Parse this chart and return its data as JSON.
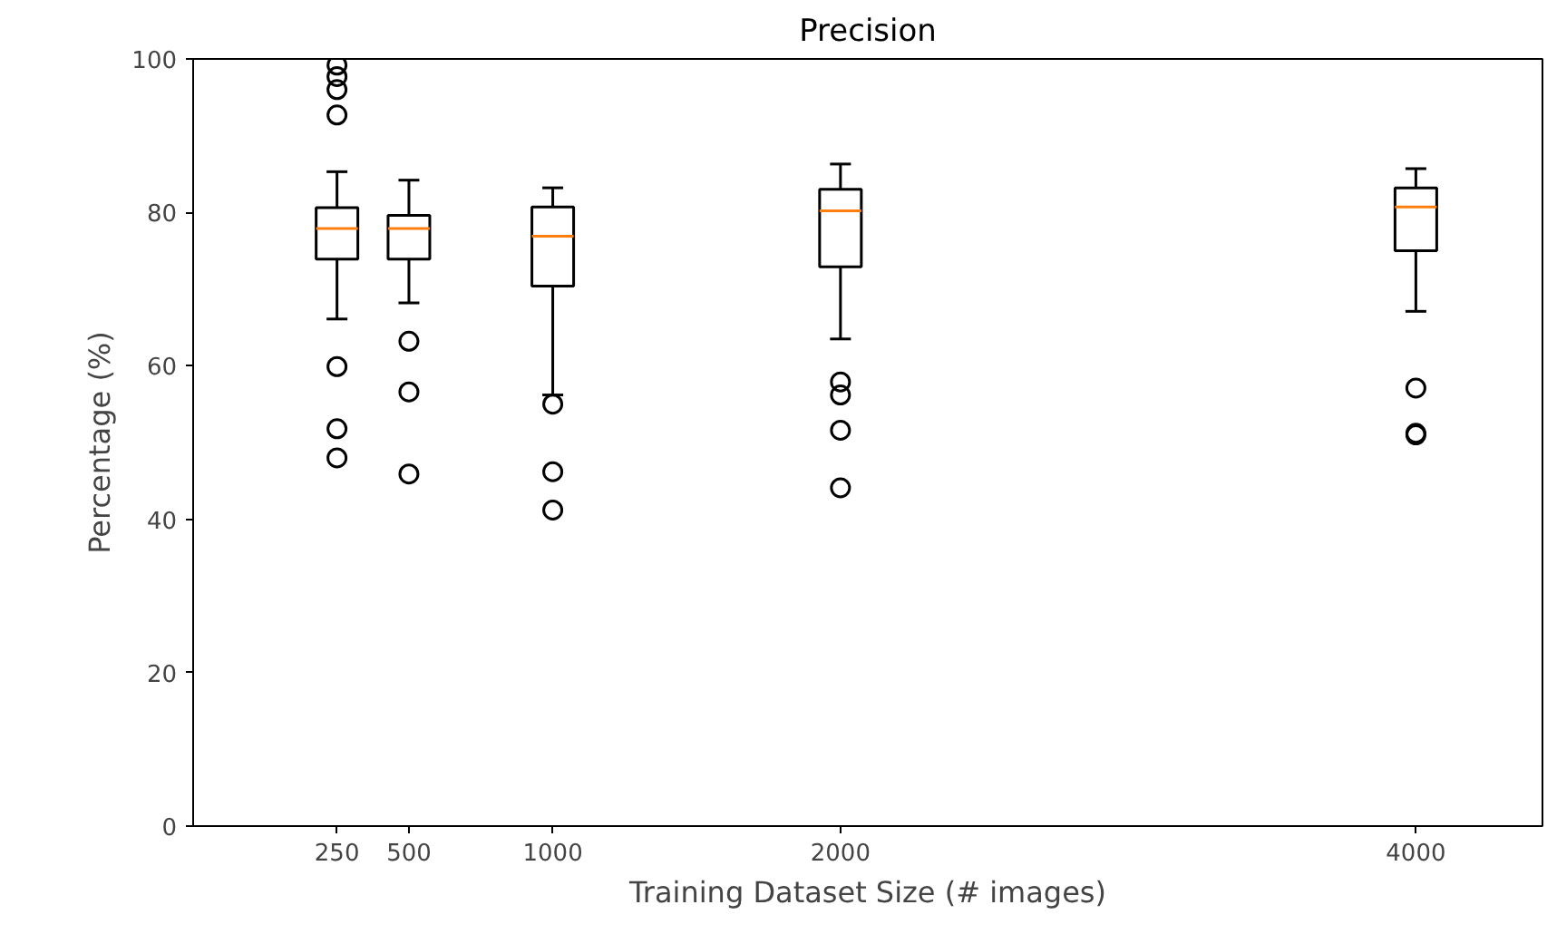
{
  "chart_data": {
    "type": "box",
    "title": "Precision",
    "xlabel": "Training Dataset Size (# images)",
    "ylabel": "Percentage (%)",
    "x": [
      250,
      500,
      1000,
      2000,
      4000
    ],
    "boxes": [
      {
        "low": 66.1,
        "q1": 73.9,
        "median": 77.9,
        "q3": 80.6,
        "high": 85.3,
        "outliers": [
          99.2,
          97.7,
          96,
          92.7,
          59.9,
          51.8,
          48
        ]
      },
      {
        "low": 68.2,
        "q1": 73.9,
        "median": 77.9,
        "q3": 79.6,
        "high": 84.2,
        "outliers": [
          63.2,
          56.6,
          45.9
        ]
      },
      {
        "low": 56.2,
        "q1": 70.4,
        "median": 76.9,
        "q3": 80.7,
        "high": 83.2,
        "outliers": [
          55,
          46.2,
          41.2
        ]
      },
      {
        "low": 63.5,
        "q1": 72.9,
        "median": 80.2,
        "q3": 83,
        "high": 86.3,
        "outliers": [
          57.9,
          56.2,
          51.6,
          44.1
        ]
      },
      {
        "low": 67.1,
        "q1": 75,
        "median": 80.7,
        "q3": 83.2,
        "high": 85.7,
        "outliers": [
          57.1,
          51.2,
          51
        ]
      }
    ],
    "color": "#000000",
    "xlim": [
      -250,
      4440
    ],
    "xticks": [
      250,
      500,
      1000,
      2000,
      4000
    ],
    "ylim": [
      0,
      100
    ],
    "yticks": [
      0,
      20,
      40,
      60,
      80,
      100
    ],
    "grid": false
  }
}
